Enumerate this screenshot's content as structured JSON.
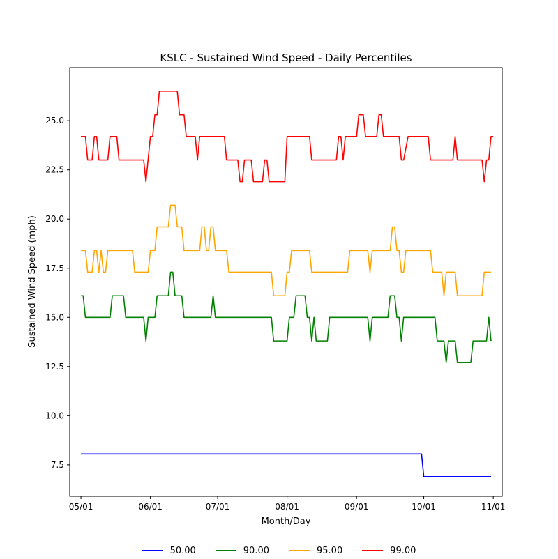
{
  "chart_data": {
    "type": "line",
    "title": "KSLC - Sustained Wind Speed - Daily Percentiles",
    "xlabel": "Month/Day",
    "ylabel": "Sustained Wind Speed (mph)",
    "xlim": [
      "2000-04-26",
      "2000-11-05"
    ],
    "ylim": [
      5.9,
      27.7
    ],
    "x_ticks": [
      {
        "date": "2000-05-01",
        "label": "05/01"
      },
      {
        "date": "2000-06-01",
        "label": "06/01"
      },
      {
        "date": "2000-07-01",
        "label": "07/01"
      },
      {
        "date": "2000-08-01",
        "label": "08/01"
      },
      {
        "date": "2000-09-01",
        "label": "09/01"
      },
      {
        "date": "2000-10-01",
        "label": "10/01"
      },
      {
        "date": "2000-11-01",
        "label": "11/01"
      }
    ],
    "y_ticks": [
      {
        "value": 7.5,
        "label": "7.5"
      },
      {
        "value": 10.0,
        "label": "10.0"
      },
      {
        "value": 12.5,
        "label": "12.5"
      },
      {
        "value": 15.0,
        "label": "15.0"
      },
      {
        "value": 17.5,
        "label": "17.5"
      },
      {
        "value": 20.0,
        "label": "20.0"
      },
      {
        "value": 22.5,
        "label": "22.5"
      },
      {
        "value": 25.0,
        "label": "25.0"
      }
    ],
    "grid": false,
    "legend_position": "bottom-center",
    "series": [
      {
        "name": "50.00",
        "color": "#0000ff",
        "points": [
          [
            "2000-05-01",
            8.05
          ],
          [
            "2000-09-30",
            8.05
          ],
          [
            "2000-10-01",
            6.9
          ],
          [
            "2000-10-31",
            6.9
          ]
        ]
      },
      {
        "name": "90.00",
        "color": "#008000",
        "points": [
          [
            "2000-05-01",
            16.1
          ],
          [
            "2000-05-02",
            16.1
          ],
          [
            "2000-05-03",
            15.0
          ],
          [
            "2000-05-14",
            15.0
          ],
          [
            "2000-05-15",
            16.1
          ],
          [
            "2000-05-20",
            16.1
          ],
          [
            "2000-05-21",
            15.0
          ],
          [
            "2000-05-29",
            15.0
          ],
          [
            "2000-05-30",
            13.8
          ],
          [
            "2000-05-31",
            15.0
          ],
          [
            "2000-06-03",
            15.0
          ],
          [
            "2000-06-04",
            16.1
          ],
          [
            "2000-06-09",
            16.1
          ],
          [
            "2000-06-10",
            17.3
          ],
          [
            "2000-06-11",
            17.3
          ],
          [
            "2000-06-12",
            16.1
          ],
          [
            "2000-06-15",
            16.1
          ],
          [
            "2000-06-16",
            15.0
          ],
          [
            "2000-06-28",
            15.0
          ],
          [
            "2000-06-29",
            16.1
          ],
          [
            "2000-06-30",
            15.0
          ],
          [
            "2000-07-25",
            15.0
          ],
          [
            "2000-07-26",
            13.8
          ],
          [
            "2000-08-01",
            13.8
          ],
          [
            "2000-08-02",
            15.0
          ],
          [
            "2000-08-04",
            15.0
          ],
          [
            "2000-08-05",
            16.1
          ],
          [
            "2000-08-09",
            16.1
          ],
          [
            "2000-08-10",
            15.0
          ],
          [
            "2000-08-11",
            15.0
          ],
          [
            "2000-08-12",
            13.8
          ],
          [
            "2000-08-13",
            15.0
          ],
          [
            "2000-08-14",
            13.8
          ],
          [
            "2000-08-19",
            13.8
          ],
          [
            "2000-08-20",
            15.0
          ],
          [
            "2000-09-06",
            15.0
          ],
          [
            "2000-09-07",
            13.8
          ],
          [
            "2000-09-08",
            15.0
          ],
          [
            "2000-09-15",
            15.0
          ],
          [
            "2000-09-16",
            16.1
          ],
          [
            "2000-09-18",
            16.1
          ],
          [
            "2000-09-19",
            15.0
          ],
          [
            "2000-09-20",
            15.0
          ],
          [
            "2000-09-21",
            13.8
          ],
          [
            "2000-09-22",
            15.0
          ],
          [
            "2000-10-06",
            15.0
          ],
          [
            "2000-10-07",
            13.8
          ],
          [
            "2000-10-10",
            13.8
          ],
          [
            "2000-10-11",
            12.7
          ],
          [
            "2000-10-12",
            13.8
          ],
          [
            "2000-10-15",
            13.8
          ],
          [
            "2000-10-16",
            12.7
          ],
          [
            "2000-10-22",
            12.7
          ],
          [
            "2000-10-23",
            13.8
          ],
          [
            "2000-10-29",
            13.8
          ],
          [
            "2000-10-30",
            15.0
          ],
          [
            "2000-10-31",
            13.8
          ]
        ]
      },
      {
        "name": "95.00",
        "color": "#ffa500",
        "points": [
          [
            "2000-05-01",
            18.4
          ],
          [
            "2000-05-03",
            18.4
          ],
          [
            "2000-05-04",
            17.3
          ],
          [
            "2000-05-06",
            17.3
          ],
          [
            "2000-05-07",
            18.4
          ],
          [
            "2000-05-08",
            18.4
          ],
          [
            "2000-05-09",
            17.3
          ],
          [
            "2000-05-10",
            18.4
          ],
          [
            "2000-05-11",
            17.3
          ],
          [
            "2000-05-12",
            17.3
          ],
          [
            "2000-05-13",
            18.4
          ],
          [
            "2000-05-24",
            18.4
          ],
          [
            "2000-05-25",
            17.3
          ],
          [
            "2000-05-31",
            17.3
          ],
          [
            "2000-06-01",
            18.4
          ],
          [
            "2000-06-03",
            18.4
          ],
          [
            "2000-06-04",
            19.6
          ],
          [
            "2000-06-09",
            19.6
          ],
          [
            "2000-06-10",
            20.7
          ],
          [
            "2000-06-12",
            20.7
          ],
          [
            "2000-06-13",
            19.6
          ],
          [
            "2000-06-15",
            19.6
          ],
          [
            "2000-06-16",
            18.4
          ],
          [
            "2000-06-23",
            18.4
          ],
          [
            "2000-06-24",
            19.6
          ],
          [
            "2000-06-25",
            19.6
          ],
          [
            "2000-06-26",
            18.4
          ],
          [
            "2000-06-27",
            18.4
          ],
          [
            "2000-06-28",
            19.6
          ],
          [
            "2000-06-29",
            19.6
          ],
          [
            "2000-06-30",
            18.4
          ],
          [
            "2000-07-05",
            18.4
          ],
          [
            "2000-07-06",
            17.3
          ],
          [
            "2000-07-25",
            17.3
          ],
          [
            "2000-07-26",
            16.1
          ],
          [
            "2000-07-31",
            16.1
          ],
          [
            "2000-08-01",
            17.3
          ],
          [
            "2000-08-02",
            17.3
          ],
          [
            "2000-08-03",
            18.4
          ],
          [
            "2000-08-11",
            18.4
          ],
          [
            "2000-08-12",
            17.3
          ],
          [
            "2000-08-28",
            17.3
          ],
          [
            "2000-08-29",
            18.4
          ],
          [
            "2000-09-06",
            18.4
          ],
          [
            "2000-09-07",
            17.3
          ],
          [
            "2000-09-08",
            18.4
          ],
          [
            "2000-09-16",
            18.4
          ],
          [
            "2000-09-17",
            19.6
          ],
          [
            "2000-09-18",
            19.6
          ],
          [
            "2000-09-19",
            18.4
          ],
          [
            "2000-09-20",
            18.4
          ],
          [
            "2000-09-21",
            17.3
          ],
          [
            "2000-09-22",
            17.3
          ],
          [
            "2000-09-23",
            18.4
          ],
          [
            "2000-10-04",
            18.4
          ],
          [
            "2000-10-05",
            17.3
          ],
          [
            "2000-10-09",
            17.3
          ],
          [
            "2000-10-10",
            16.1
          ],
          [
            "2000-10-11",
            17.3
          ],
          [
            "2000-10-15",
            17.3
          ],
          [
            "2000-10-16",
            16.1
          ],
          [
            "2000-10-27",
            16.1
          ],
          [
            "2000-10-28",
            17.3
          ],
          [
            "2000-10-31",
            17.3
          ]
        ]
      },
      {
        "name": "99.00",
        "color": "#ff0000",
        "points": [
          [
            "2000-05-01",
            24.2
          ],
          [
            "2000-05-03",
            24.2
          ],
          [
            "2000-05-04",
            23.0
          ],
          [
            "2000-05-06",
            23.0
          ],
          [
            "2000-05-07",
            24.2
          ],
          [
            "2000-05-08",
            24.2
          ],
          [
            "2000-05-09",
            23.0
          ],
          [
            "2000-05-13",
            23.0
          ],
          [
            "2000-05-14",
            24.2
          ],
          [
            "2000-05-17",
            24.2
          ],
          [
            "2000-05-18",
            23.0
          ],
          [
            "2000-05-29",
            23.0
          ],
          [
            "2000-05-30",
            21.9
          ],
          [
            "2000-06-01",
            24.2
          ],
          [
            "2000-06-02",
            24.2
          ],
          [
            "2000-06-03",
            25.3
          ],
          [
            "2000-06-04",
            25.3
          ],
          [
            "2000-06-05",
            26.5
          ],
          [
            "2000-06-13",
            26.5
          ],
          [
            "2000-06-14",
            25.3
          ],
          [
            "2000-06-16",
            25.3
          ],
          [
            "2000-06-17",
            24.2
          ],
          [
            "2000-06-21",
            24.2
          ],
          [
            "2000-06-22",
            23.0
          ],
          [
            "2000-06-23",
            24.2
          ],
          [
            "2000-07-04",
            24.2
          ],
          [
            "2000-07-05",
            23.0
          ],
          [
            "2000-07-10",
            23.0
          ],
          [
            "2000-07-11",
            21.9
          ],
          [
            "2000-07-12",
            21.9
          ],
          [
            "2000-07-13",
            23.0
          ],
          [
            "2000-07-16",
            23.0
          ],
          [
            "2000-07-17",
            21.9
          ],
          [
            "2000-07-21",
            21.9
          ],
          [
            "2000-07-22",
            23.0
          ],
          [
            "2000-07-23",
            23.0
          ],
          [
            "2000-07-24",
            21.9
          ],
          [
            "2000-07-31",
            21.9
          ],
          [
            "2000-08-01",
            24.2
          ],
          [
            "2000-08-11",
            24.2
          ],
          [
            "2000-08-12",
            23.0
          ],
          [
            "2000-08-23",
            23.0
          ],
          [
            "2000-08-24",
            24.2
          ],
          [
            "2000-08-25",
            24.2
          ],
          [
            "2000-08-26",
            23.0
          ],
          [
            "2000-08-27",
            24.2
          ],
          [
            "2000-09-01",
            24.2
          ],
          [
            "2000-09-02",
            25.3
          ],
          [
            "2000-09-04",
            25.3
          ],
          [
            "2000-09-05",
            24.2
          ],
          [
            "2000-09-10",
            24.2
          ],
          [
            "2000-09-11",
            25.3
          ],
          [
            "2000-09-12",
            25.3
          ],
          [
            "2000-09-13",
            24.2
          ],
          [
            "2000-09-20",
            24.2
          ],
          [
            "2000-09-21",
            23.0
          ],
          [
            "2000-09-22",
            23.0
          ],
          [
            "2000-09-24",
            24.2
          ],
          [
            "2000-10-03",
            24.2
          ],
          [
            "2000-10-04",
            23.0
          ],
          [
            "2000-10-14",
            23.0
          ],
          [
            "2000-10-15",
            24.2
          ],
          [
            "2000-10-16",
            23.0
          ],
          [
            "2000-10-27",
            23.0
          ],
          [
            "2000-10-28",
            21.9
          ],
          [
            "2000-10-29",
            23.0
          ],
          [
            "2000-10-30",
            23.0
          ],
          [
            "2000-10-31",
            24.2
          ],
          [
            "2000-11-01",
            24.2
          ]
        ]
      }
    ]
  }
}
